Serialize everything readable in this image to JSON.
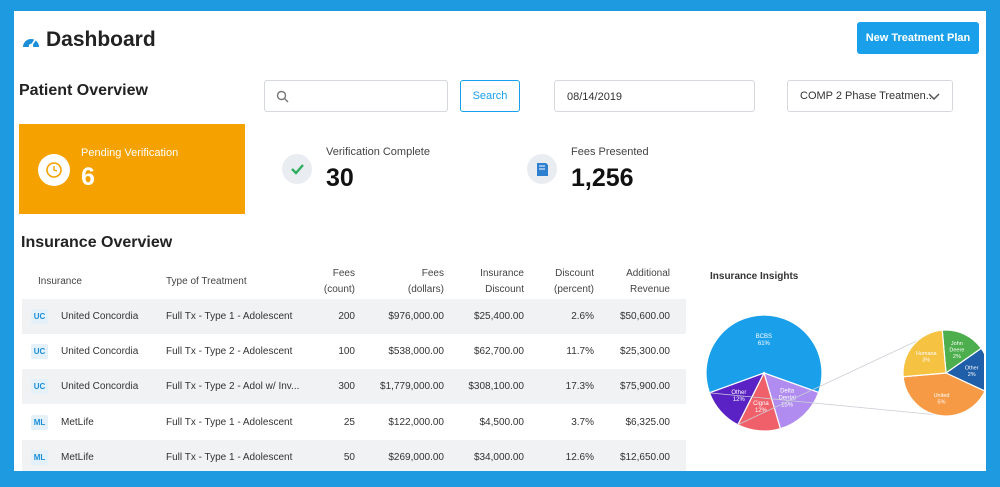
{
  "header": {
    "title": "Dashboard",
    "new_plan_label": "New Treatment Plan"
  },
  "patient_overview": {
    "title": "Patient Overview",
    "search_value": "",
    "search_placeholder": "",
    "search_label": "Search",
    "date_value": "08/14/2019",
    "plan_select": "COMP 2 Phase Treatmen..."
  },
  "stats": {
    "pending": {
      "label": "Pending Verification",
      "value": "6"
    },
    "verified": {
      "label": "Verification Complete",
      "value": "30"
    },
    "fees": {
      "label": "Fees Presented",
      "value": "1,256"
    }
  },
  "insurance_overview": {
    "title": "Insurance Overview",
    "columns": {
      "insurance": "Insurance",
      "treatment": "Type of Treatment",
      "fees_count_1": "Fees",
      "fees_count_2": "(count)",
      "fees_dollars_1": "Fees",
      "fees_dollars_2": "(dollars)",
      "ins_discount_1": "Insurance",
      "ins_discount_2": "Discount",
      "discount_pct_1": "Discount",
      "discount_pct_2": "(percent)",
      "add_revenue_1": "Additional",
      "add_revenue_2": "Revenue"
    },
    "rows": [
      {
        "badge": "UC",
        "insurance": "United Concordia",
        "treatment": "Full Tx - Type 1 - Adolescent",
        "fees_count": "200",
        "fees_dollars": "$976,000.00",
        "ins_discount": "$25,400.00",
        "discount_pct": "2.6%",
        "add_revenue": "$50,600.00"
      },
      {
        "badge": "UC",
        "insurance": "United Concordia",
        "treatment": "Full Tx - Type 2 - Adolescent",
        "fees_count": "100",
        "fees_dollars": "$538,000.00",
        "ins_discount": "$62,700.00",
        "discount_pct": "11.7%",
        "add_revenue": "$25,300.00"
      },
      {
        "badge": "UC",
        "insurance": "United Concordia",
        "treatment": "Full Tx - Type 2 - Adol w/ Inv...",
        "fees_count": "300",
        "fees_dollars": "$1,779,000.00",
        "ins_discount": "$308,100.00",
        "discount_pct": "17.3%",
        "add_revenue": "$75,900.00"
      },
      {
        "badge": "ML",
        "insurance": "MetLife",
        "treatment": "Full Tx - Type 1 - Adolescent",
        "fees_count": "25",
        "fees_dollars": "$122,000.00",
        "ins_discount": "$4,500.00",
        "discount_pct": "3.7%",
        "add_revenue": "$6,325.00"
      },
      {
        "badge": "ML",
        "insurance": "MetLife",
        "treatment": "Full Tx - Type 1 - Adolescent",
        "fees_count": "50",
        "fees_dollars": "$269,000.00",
        "ins_discount": "$34,000.00",
        "discount_pct": "12.6%",
        "add_revenue": "$12,650.00"
      }
    ]
  },
  "chart_data": {
    "type": "pie",
    "title": "Insurance Insights",
    "slices": [
      {
        "label": "BCBS",
        "pct": "61%",
        "value": 61,
        "color": "#1aa0ea"
      },
      {
        "label": "Delta Dental",
        "pct": "15%",
        "value": 15,
        "color": "#b08cf0"
      },
      {
        "label": "Cigna",
        "pct": "12%",
        "value": 12,
        "color": "#f0606a"
      },
      {
        "label": "Other",
        "pct": "12%",
        "value": 12,
        "color": "#5a21c4"
      }
    ],
    "breakout": {
      "source": "Other",
      "slices": [
        {
          "label": "John Deere",
          "pct": "2%",
          "value": 2,
          "color": "#4cae4c"
        },
        {
          "label": "Other",
          "pct": "2%",
          "value": 2,
          "color": "#1f5ea8"
        },
        {
          "label": "United",
          "pct": "5%",
          "value": 5,
          "color": "#f79a45"
        },
        {
          "label": "Humana",
          "pct": "3%",
          "value": 3,
          "color": "#f5c242"
        }
      ]
    }
  },
  "colors": {
    "accent": "#1aa0ea",
    "pending_card": "#f5a100",
    "check": "#2fae5f"
  }
}
